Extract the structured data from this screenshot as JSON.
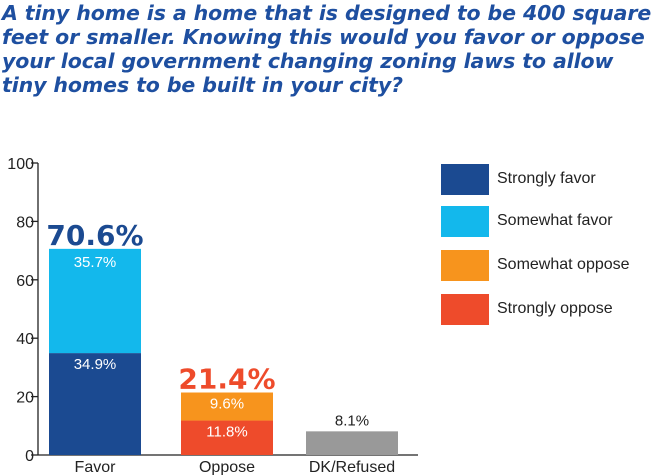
{
  "question": "A tiny home is a home that is designed to be 400 square feet or smaller. Knowing this would you favor or oppose your local government changing zoning laws to allow tiny homes to be built in your city?",
  "colors": {
    "title": "#1e4fa0",
    "strongly_favor": "#1b4a91",
    "somewhat_favor": "#13b8ec",
    "somewhat_oppose": "#f7941d",
    "strongly_oppose": "#ee4b2b",
    "dk_refused": "#999999",
    "axis": "#222222"
  },
  "chart_data": {
    "type": "bar",
    "stacked": true,
    "categories": [
      "Favor",
      "Oppose",
      "DK/Refused"
    ],
    "ylim": [
      0,
      100
    ],
    "yticks": [
      0,
      20,
      40,
      60,
      80,
      100
    ],
    "xlabel": "",
    "ylabel": "",
    "legend_position": "right",
    "grid": false,
    "series": [
      {
        "name": "Strongly favor",
        "key": "strongly_favor",
        "values": [
          34.9,
          null,
          null
        ],
        "labels": [
          "34.9%",
          "",
          ""
        ]
      },
      {
        "name": "Somewhat favor",
        "key": "somewhat_favor",
        "values": [
          35.7,
          null,
          null
        ],
        "labels": [
          "35.7%",
          "",
          ""
        ]
      },
      {
        "name": "Strongly oppose",
        "key": "strongly_oppose",
        "values": [
          null,
          11.8,
          null
        ],
        "labels": [
          "",
          "11.8%",
          ""
        ]
      },
      {
        "name": "Somewhat oppose",
        "key": "somewhat_oppose",
        "values": [
          null,
          9.6,
          null
        ],
        "labels": [
          "",
          "9.6%",
          ""
        ]
      },
      {
        "name": "",
        "key": "dk_refused",
        "values": [
          null,
          null,
          8.1
        ],
        "labels": [
          "",
          "",
          "8.1%"
        ]
      }
    ],
    "totals": [
      {
        "category": "Favor",
        "label": "70.6%",
        "value": 70.6,
        "color_key": "strongly_favor"
      },
      {
        "category": "Oppose",
        "label": "21.4%",
        "value": 21.4,
        "color_key": "strongly_oppose"
      }
    ]
  },
  "legend": [
    {
      "label": "Strongly favor",
      "color_key": "strongly_favor"
    },
    {
      "label": "Somewhat favor",
      "color_key": "somewhat_favor"
    },
    {
      "label": "Somewhat oppose",
      "color_key": "somewhat_oppose"
    },
    {
      "label": "Strongly oppose",
      "color_key": "strongly_oppose"
    }
  ]
}
